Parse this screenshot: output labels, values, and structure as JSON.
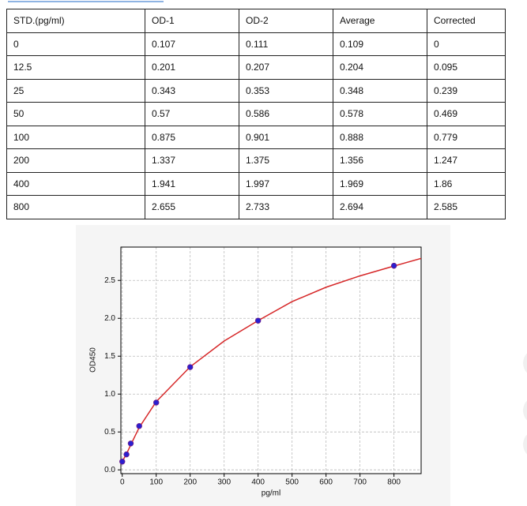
{
  "table": {
    "header": [
      "STD.(pg/ml)",
      "OD-1",
      "OD-2",
      "Average",
      "Corrected"
    ],
    "rows": [
      [
        "0",
        "0.107",
        "0.111",
        "0.109",
        "0"
      ],
      [
        "12.5",
        "0.201",
        "0.207",
        "0.204",
        "0.095"
      ],
      [
        "25",
        "0.343",
        "0.353",
        "0.348",
        "0.239"
      ],
      [
        "50",
        "0.57",
        "0.586",
        "0.578",
        "0.469"
      ],
      [
        "100",
        "0.875",
        "0.901",
        "0.888",
        "0.779"
      ],
      [
        "200",
        "1.337",
        "1.375",
        "1.356",
        "1.247"
      ],
      [
        "400",
        "1.941",
        "1.997",
        "1.969",
        "1.86"
      ],
      [
        "800",
        "2.655",
        "2.733",
        "2.694",
        "2.585"
      ]
    ]
  },
  "chart_data": {
    "type": "scatter",
    "xlabel": "pg/ml",
    "ylabel": "OD450",
    "xlim": [
      -4,
      880
    ],
    "ylim": [
      -0.05,
      2.94
    ],
    "xticks": [
      0,
      100,
      200,
      300,
      400,
      500,
      600,
      700,
      800
    ],
    "yticks": [
      {
        "value": 0,
        "label": "0.0"
      },
      {
        "value": 0.5,
        "label": "0.5"
      },
      {
        "value": 1,
        "label": "1.0"
      },
      {
        "value": 1.5,
        "label": "1.5"
      },
      {
        "value": 2,
        "label": "2.0"
      },
      {
        "value": 2.5,
        "label": "2.5"
      }
    ],
    "grid": true,
    "series": [
      {
        "type": "line",
        "color": "#d62728",
        "x": [
          0,
          12.5,
          25,
          50,
          100,
          200,
          300,
          400,
          500,
          600,
          700,
          800,
          880
        ],
        "values": [
          0.11,
          0.21,
          0.33,
          0.56,
          0.9,
          1.36,
          1.7,
          1.97,
          2.22,
          2.41,
          2.56,
          2.69,
          2.79
        ]
      },
      {
        "type": "scatter",
        "color": "#2a1fd0",
        "x": [
          0,
          12.5,
          25,
          50,
          100,
          200,
          400,
          800
        ],
        "values": [
          0.109,
          0.204,
          0.348,
          0.578,
          0.888,
          1.356,
          1.969,
          2.694
        ]
      }
    ]
  }
}
